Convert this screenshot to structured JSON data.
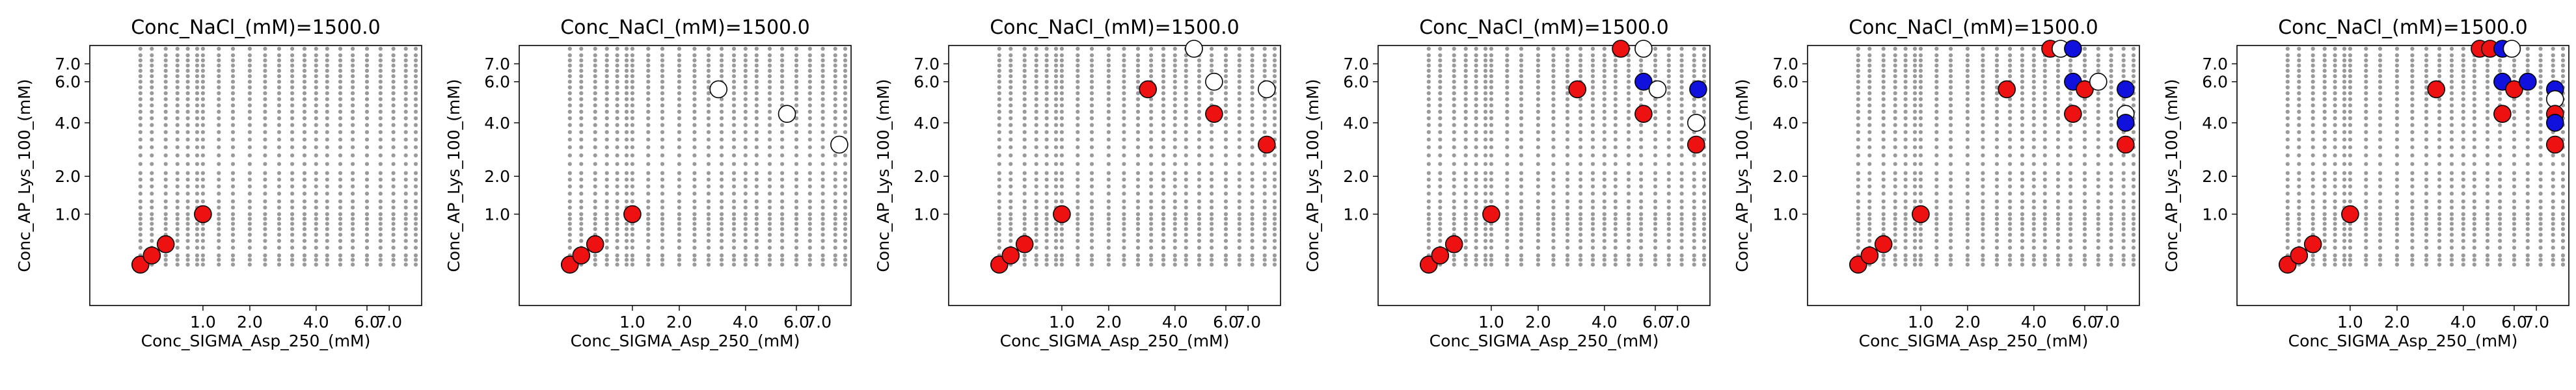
{
  "colors": {
    "grid_point": "#9a9a9a",
    "red": "#ee1111",
    "blue": "#1111dd",
    "white": "#ffffff",
    "edge": "#000000"
  },
  "chart_data": [
    {
      "type": "scatter",
      "title": "Conc_NaCl_(mM)=1500.0",
      "xlabel": "Conc_SIGMA_Asp_250_(mM)",
      "ylabel": "Conc_AP_Lys_100_(mM)",
      "xscale": "sqrt",
      "yscale": "sqrt",
      "xlim": [
        0,
        8.6
      ],
      "ylim": [
        0,
        8.1
      ],
      "xticks": [
        1.0,
        2.0,
        4.0,
        6.0,
        7.0
      ],
      "xtick_labels": [
        "1.0",
        "2.0",
        "4.0",
        "6.0",
        "7.0"
      ],
      "yticks": [
        1.0,
        2.0,
        4.0,
        6.0,
        7.0
      ],
      "ytick_labels": [
        "1.0",
        "2.0",
        "4.0",
        "6.0",
        "7.0"
      ],
      "grid_x_max": 8.3,
      "grid_y_max": 7.9,
      "points": [
        {
          "x": 0.2,
          "y": 0.2,
          "color": "red"
        },
        {
          "x": 0.3,
          "y": 0.3,
          "color": "red"
        },
        {
          "x": 0.45,
          "y": 0.45,
          "color": "red"
        },
        {
          "x": 1.0,
          "y": 1.0,
          "color": "red"
        }
      ]
    },
    {
      "type": "scatter",
      "title": "Conc_NaCl_(mM)=1500.0",
      "xlabel": "Conc_SIGMA_Asp_250_(mM)",
      "ylabel": "Conc_AP_Lys_100_(mM)",
      "xscale": "sqrt",
      "yscale": "sqrt",
      "xlim": [
        0,
        8.6
      ],
      "ylim": [
        0,
        8.1
      ],
      "xticks": [
        1.0,
        2.0,
        4.0,
        6.0,
        7.0
      ],
      "xtick_labels": [
        "1.0",
        "2.0",
        "4.0",
        "6.0",
        "7.0"
      ],
      "yticks": [
        1.0,
        2.0,
        4.0,
        6.0,
        7.0
      ],
      "ytick_labels": [
        "1.0",
        "2.0",
        "4.0",
        "6.0",
        "7.0"
      ],
      "grid_x_max": 8.3,
      "grid_y_max": 7.9,
      "points": [
        {
          "x": 0.2,
          "y": 0.2,
          "color": "red"
        },
        {
          "x": 0.3,
          "y": 0.3,
          "color": "red"
        },
        {
          "x": 0.45,
          "y": 0.45,
          "color": "red"
        },
        {
          "x": 1.0,
          "y": 1.0,
          "color": "red"
        },
        {
          "x": 3.1,
          "y": 5.6,
          "color": "white"
        },
        {
          "x": 5.6,
          "y": 4.4,
          "color": "white"
        },
        {
          "x": 8.0,
          "y": 3.1,
          "color": "white"
        }
      ]
    },
    {
      "type": "scatter",
      "title": "Conc_NaCl_(mM)=1500.0",
      "xlabel": "Conc_SIGMA_Asp_250_(mM)",
      "ylabel": "Conc_AP_Lys_100_(mM)",
      "xscale": "sqrt",
      "yscale": "sqrt",
      "xlim": [
        0,
        8.6
      ],
      "ylim": [
        0,
        8.1
      ],
      "xticks": [
        1.0,
        2.0,
        4.0,
        6.0,
        7.0
      ],
      "xtick_labels": [
        "1.0",
        "2.0",
        "4.0",
        "6.0",
        "7.0"
      ],
      "yticks": [
        1.0,
        2.0,
        4.0,
        6.0,
        7.0
      ],
      "ytick_labels": [
        "1.0",
        "2.0",
        "4.0",
        "6.0",
        "7.0"
      ],
      "grid_x_max": 8.3,
      "grid_y_max": 7.9,
      "points": [
        {
          "x": 0.2,
          "y": 0.2,
          "color": "red"
        },
        {
          "x": 0.3,
          "y": 0.3,
          "color": "red"
        },
        {
          "x": 0.45,
          "y": 0.45,
          "color": "red"
        },
        {
          "x": 1.0,
          "y": 1.0,
          "color": "red"
        },
        {
          "x": 3.1,
          "y": 5.6,
          "color": "red"
        },
        {
          "x": 5.5,
          "y": 4.4,
          "color": "red"
        },
        {
          "x": 7.9,
          "y": 3.1,
          "color": "red"
        },
        {
          "x": 4.7,
          "y": 7.9,
          "color": "white"
        },
        {
          "x": 5.5,
          "y": 6.0,
          "color": "white"
        },
        {
          "x": 7.9,
          "y": 5.6,
          "color": "white"
        }
      ]
    },
    {
      "type": "scatter",
      "title": "Conc_NaCl_(mM)=1500.0",
      "xlabel": "Conc_SIGMA_Asp_250_(mM)",
      "ylabel": "Conc_AP_Lys_100_(mM)",
      "xscale": "sqrt",
      "yscale": "sqrt",
      "xlim": [
        0,
        8.6
      ],
      "ylim": [
        0,
        8.1
      ],
      "xticks": [
        1.0,
        2.0,
        4.0,
        6.0,
        7.0
      ],
      "xtick_labels": [
        "1.0",
        "2.0",
        "4.0",
        "6.0",
        "7.0"
      ],
      "yticks": [
        1.0,
        2.0,
        4.0,
        6.0,
        7.0
      ],
      "ytick_labels": [
        "1.0",
        "2.0",
        "4.0",
        "6.0",
        "7.0"
      ],
      "grid_x_max": 8.3,
      "grid_y_max": 7.9,
      "points": [
        {
          "x": 0.2,
          "y": 0.2,
          "color": "red"
        },
        {
          "x": 0.3,
          "y": 0.3,
          "color": "red"
        },
        {
          "x": 0.45,
          "y": 0.45,
          "color": "red"
        },
        {
          "x": 1.0,
          "y": 1.0,
          "color": "red"
        },
        {
          "x": 3.1,
          "y": 5.6,
          "color": "red"
        },
        {
          "x": 5.5,
          "y": 4.4,
          "color": "red"
        },
        {
          "x": 7.9,
          "y": 3.1,
          "color": "red"
        },
        {
          "x": 4.6,
          "y": 7.9,
          "color": "red"
        },
        {
          "x": 5.5,
          "y": 7.9,
          "color": "white"
        },
        {
          "x": 5.5,
          "y": 6.0,
          "color": "blue"
        },
        {
          "x": 6.1,
          "y": 5.6,
          "color": "white"
        },
        {
          "x": 8.0,
          "y": 5.6,
          "color": "blue"
        },
        {
          "x": 7.9,
          "y": 4.0,
          "color": "white"
        }
      ]
    },
    {
      "type": "scatter",
      "title": "Conc_NaCl_(mM)=1500.0",
      "xlabel": "Conc_SIGMA_Asp_250_(mM)",
      "ylabel": "Conc_AP_Lys_100_(mM)",
      "xscale": "sqrt",
      "yscale": "sqrt",
      "xlim": [
        0,
        8.6
      ],
      "ylim": [
        0,
        8.1
      ],
      "xticks": [
        1.0,
        2.0,
        4.0,
        6.0,
        7.0
      ],
      "xtick_labels": [
        "1.0",
        "2.0",
        "4.0",
        "6.0",
        "7.0"
      ],
      "yticks": [
        1.0,
        2.0,
        4.0,
        6.0,
        7.0
      ],
      "ytick_labels": [
        "1.0",
        "2.0",
        "4.0",
        "6.0",
        "7.0"
      ],
      "grid_x_max": 8.3,
      "grid_y_max": 7.9,
      "points": [
        {
          "x": 0.2,
          "y": 0.2,
          "color": "red"
        },
        {
          "x": 0.3,
          "y": 0.3,
          "color": "red"
        },
        {
          "x": 0.45,
          "y": 0.45,
          "color": "red"
        },
        {
          "x": 1.0,
          "y": 1.0,
          "color": "red"
        },
        {
          "x": 3.1,
          "y": 5.6,
          "color": "red"
        },
        {
          "x": 5.5,
          "y": 4.4,
          "color": "red"
        },
        {
          "x": 7.9,
          "y": 3.1,
          "color": "red"
        },
        {
          "x": 4.6,
          "y": 7.9,
          "color": "red"
        },
        {
          "x": 5.0,
          "y": 7.9,
          "color": "white"
        },
        {
          "x": 5.5,
          "y": 7.9,
          "color": "blue"
        },
        {
          "x": 5.5,
          "y": 6.0,
          "color": "blue"
        },
        {
          "x": 6.0,
          "y": 5.6,
          "color": "red"
        },
        {
          "x": 6.6,
          "y": 6.0,
          "color": "white"
        },
        {
          "x": 7.9,
          "y": 5.6,
          "color": "blue"
        },
        {
          "x": 7.9,
          "y": 4.4,
          "color": "white"
        },
        {
          "x": 7.9,
          "y": 4.0,
          "color": "blue"
        }
      ]
    },
    {
      "type": "scatter",
      "title": "Conc_NaCl_(mM)=1500.0",
      "xlabel": "Conc_SIGMA_Asp_250_(mM)",
      "ylabel": "Conc_AP_Lys_100_(mM)",
      "xscale": "sqrt",
      "yscale": "sqrt",
      "xlim": [
        0,
        8.6
      ],
      "ylim": [
        0,
        8.1
      ],
      "xticks": [
        1.0,
        2.0,
        4.0,
        6.0,
        7.0
      ],
      "xtick_labels": [
        "1.0",
        "2.0",
        "4.0",
        "6.0",
        "7.0"
      ],
      "yticks": [
        1.0,
        2.0,
        4.0,
        6.0,
        7.0
      ],
      "ytick_labels": [
        "1.0",
        "2.0",
        "4.0",
        "6.0",
        "7.0"
      ],
      "grid_x_max": 8.3,
      "grid_y_max": 7.9,
      "points": [
        {
          "x": 0.2,
          "y": 0.2,
          "color": "red"
        },
        {
          "x": 0.3,
          "y": 0.3,
          "color": "red"
        },
        {
          "x": 0.45,
          "y": 0.45,
          "color": "red"
        },
        {
          "x": 1.0,
          "y": 1.0,
          "color": "red"
        },
        {
          "x": 3.1,
          "y": 5.6,
          "color": "red"
        },
        {
          "x": 5.5,
          "y": 4.4,
          "color": "red"
        },
        {
          "x": 7.9,
          "y": 3.1,
          "color": "red"
        },
        {
          "x": 4.6,
          "y": 7.9,
          "color": "red"
        },
        {
          "x": 5.0,
          "y": 7.9,
          "color": "red"
        },
        {
          "x": 5.5,
          "y": 7.9,
          "color": "blue"
        },
        {
          "x": 5.9,
          "y": 7.9,
          "color": "white"
        },
        {
          "x": 5.5,
          "y": 6.0,
          "color": "blue"
        },
        {
          "x": 6.0,
          "y": 5.6,
          "color": "red"
        },
        {
          "x": 6.6,
          "y": 6.0,
          "color": "blue"
        },
        {
          "x": 7.9,
          "y": 5.6,
          "color": "blue"
        },
        {
          "x": 7.9,
          "y": 5.1,
          "color": "white"
        },
        {
          "x": 7.9,
          "y": 4.4,
          "color": "red"
        },
        {
          "x": 7.9,
          "y": 4.0,
          "color": "blue"
        }
      ]
    }
  ]
}
